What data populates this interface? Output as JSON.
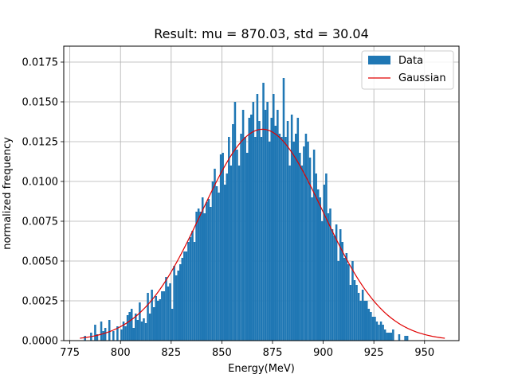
{
  "chart_data": {
    "type": "bar",
    "title": "Result: mu = 870.03, std = 30.04",
    "xlabel": "Energy(MeV)",
    "ylabel": "normalized frequency",
    "xlim": [
      772,
      967
    ],
    "ylim": [
      0,
      0.0185
    ],
    "xticks": [
      775,
      800,
      825,
      850,
      875,
      900,
      925,
      950
    ],
    "yticks": [
      0.0,
      0.0025,
      0.005,
      0.0075,
      0.01,
      0.0125,
      0.015,
      0.0175
    ],
    "xtick_labels": [
      "775",
      "800",
      "825",
      "850",
      "875",
      "900",
      "925",
      "950"
    ],
    "ytick_labels": [
      "0.0000",
      "0.0025",
      "0.0050",
      "0.0075",
      "0.0100",
      "0.0125",
      "0.0150",
      "0.0175"
    ],
    "grid": true,
    "legend": {
      "placement": "top-right",
      "entries": [
        "Data",
        "Gaussian"
      ]
    },
    "colors": {
      "bars": "#1f77b4",
      "fit": "#e00000",
      "grid": "#b0b0b0"
    },
    "bin_width": 1,
    "histogram": {
      "name": "Data",
      "x": [
        782,
        785,
        787,
        788,
        790,
        791,
        792,
        794,
        796,
        798,
        800,
        801,
        802,
        803,
        804,
        805,
        806,
        807,
        808,
        809,
        810,
        811,
        812,
        813,
        814,
        815,
        816,
        817,
        818,
        819,
        820,
        821,
        822,
        823,
        824,
        825,
        826,
        827,
        828,
        829,
        830,
        831,
        832,
        833,
        834,
        835,
        836,
        837,
        838,
        839,
        840,
        841,
        842,
        843,
        844,
        845,
        846,
        847,
        848,
        849,
        850,
        851,
        852,
        853,
        854,
        855,
        856,
        857,
        858,
        859,
        860,
        861,
        862,
        863,
        864,
        865,
        866,
        867,
        868,
        869,
        870,
        871,
        872,
        873,
        874,
        875,
        876,
        877,
        878,
        879,
        880,
        881,
        882,
        883,
        884,
        885,
        886,
        887,
        888,
        889,
        890,
        891,
        892,
        893,
        894,
        895,
        896,
        897,
        898,
        899,
        900,
        901,
        902,
        903,
        904,
        905,
        906,
        907,
        908,
        909,
        910,
        911,
        912,
        913,
        914,
        915,
        916,
        917,
        918,
        919,
        920,
        921,
        922,
        923,
        924,
        925,
        926,
        927,
        928,
        929,
        930,
        931,
        932,
        933,
        934,
        937,
        940,
        941
      ],
      "values": [
        0.0003,
        0.0005,
        0.001,
        0.0004,
        0.0012,
        0.0006,
        0.0008,
        0.0013,
        0.0006,
        0.0009,
        0.0007,
        0.0012,
        0.0009,
        0.0016,
        0.0018,
        0.002,
        0.0008,
        0.0017,
        0.0013,
        0.0024,
        0.0012,
        0.0014,
        0.0011,
        0.003,
        0.0017,
        0.0032,
        0.0021,
        0.0028,
        0.0025,
        0.0026,
        0.0031,
        0.0031,
        0.004,
        0.0034,
        0.0036,
        0.002,
        0.0047,
        0.0041,
        0.0044,
        0.0048,
        0.0052,
        0.0056,
        0.0056,
        0.0062,
        0.0065,
        0.0069,
        0.0062,
        0.0081,
        0.0083,
        0.0081,
        0.009,
        0.008,
        0.0087,
        0.0089,
        0.0084,
        0.01,
        0.0108,
        0.0097,
        0.0093,
        0.0117,
        0.0118,
        0.0098,
        0.0105,
        0.0128,
        0.011,
        0.0136,
        0.015,
        0.012,
        0.011,
        0.013,
        0.0145,
        0.0128,
        0.0118,
        0.014,
        0.0142,
        0.015,
        0.0128,
        0.0155,
        0.0138,
        0.0128,
        0.0162,
        0.0145,
        0.015,
        0.0125,
        0.014,
        0.0155,
        0.0135,
        0.0145,
        0.013,
        0.0128,
        0.0165,
        0.0128,
        0.0138,
        0.011,
        0.0142,
        0.0125,
        0.013,
        0.014,
        0.0118,
        0.011,
        0.0122,
        0.013,
        0.0125,
        0.0115,
        0.009,
        0.012,
        0.0105,
        0.0095,
        0.009,
        0.0075,
        0.0098,
        0.0105,
        0.008,
        0.0083,
        0.007,
        0.0066,
        0.0073,
        0.005,
        0.007,
        0.0062,
        0.0052,
        0.0055,
        0.0048,
        0.0035,
        0.005,
        0.0038,
        0.0035,
        0.003,
        0.0025,
        0.0032,
        0.0025,
        0.0025,
        0.002,
        0.0018,
        0.0015,
        0.0015,
        0.0012,
        0.001,
        0.0012,
        0.001,
        0.0007,
        0.0005,
        0.0005,
        0.0005,
        0.0007,
        0.0004,
        0.0003,
        0.0003
      ]
    },
    "fit": {
      "name": "Gaussian",
      "mu": 870.03,
      "std": 30.04,
      "x_range": [
        780,
        960
      ]
    }
  }
}
